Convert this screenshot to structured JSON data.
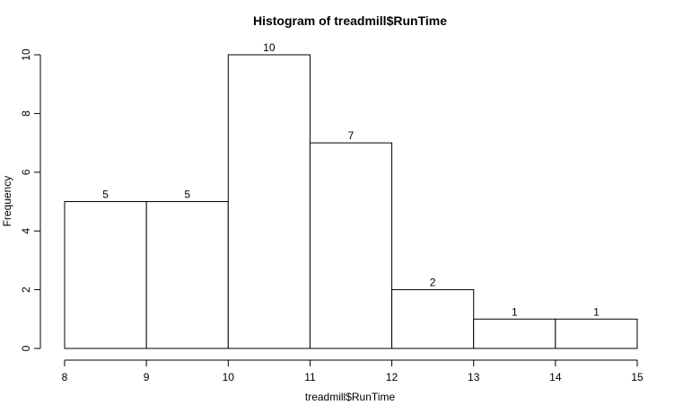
{
  "chart_data": {
    "type": "bar",
    "title": "Histogram of treadmill$RunTime",
    "xlabel": "treadmill$RunTime",
    "ylabel": "Frequency",
    "bins": [
      {
        "from": 8,
        "to": 9,
        "value": 5
      },
      {
        "from": 9,
        "to": 10,
        "value": 5
      },
      {
        "from": 10,
        "to": 11,
        "value": 10
      },
      {
        "from": 11,
        "to": 12,
        "value": 7
      },
      {
        "from": 12,
        "to": 13,
        "value": 2
      },
      {
        "from": 13,
        "to": 14,
        "value": 1
      },
      {
        "from": 14,
        "to": 15,
        "value": 1
      }
    ],
    "data_labels": [
      "5",
      "5",
      "10",
      "7",
      "2",
      "1",
      "1"
    ],
    "x_ticks": [
      "8",
      "9",
      "10",
      "11",
      "12",
      "13",
      "14",
      "15"
    ],
    "y_ticks": [
      "0",
      "2",
      "4",
      "6",
      "8",
      "10"
    ],
    "xlim": [
      8,
      15
    ],
    "ylim": [
      0,
      10
    ],
    "grid": false,
    "legend": "none",
    "colors": {
      "bar_fill": "#ffffff",
      "bar_stroke": "#000000"
    }
  }
}
